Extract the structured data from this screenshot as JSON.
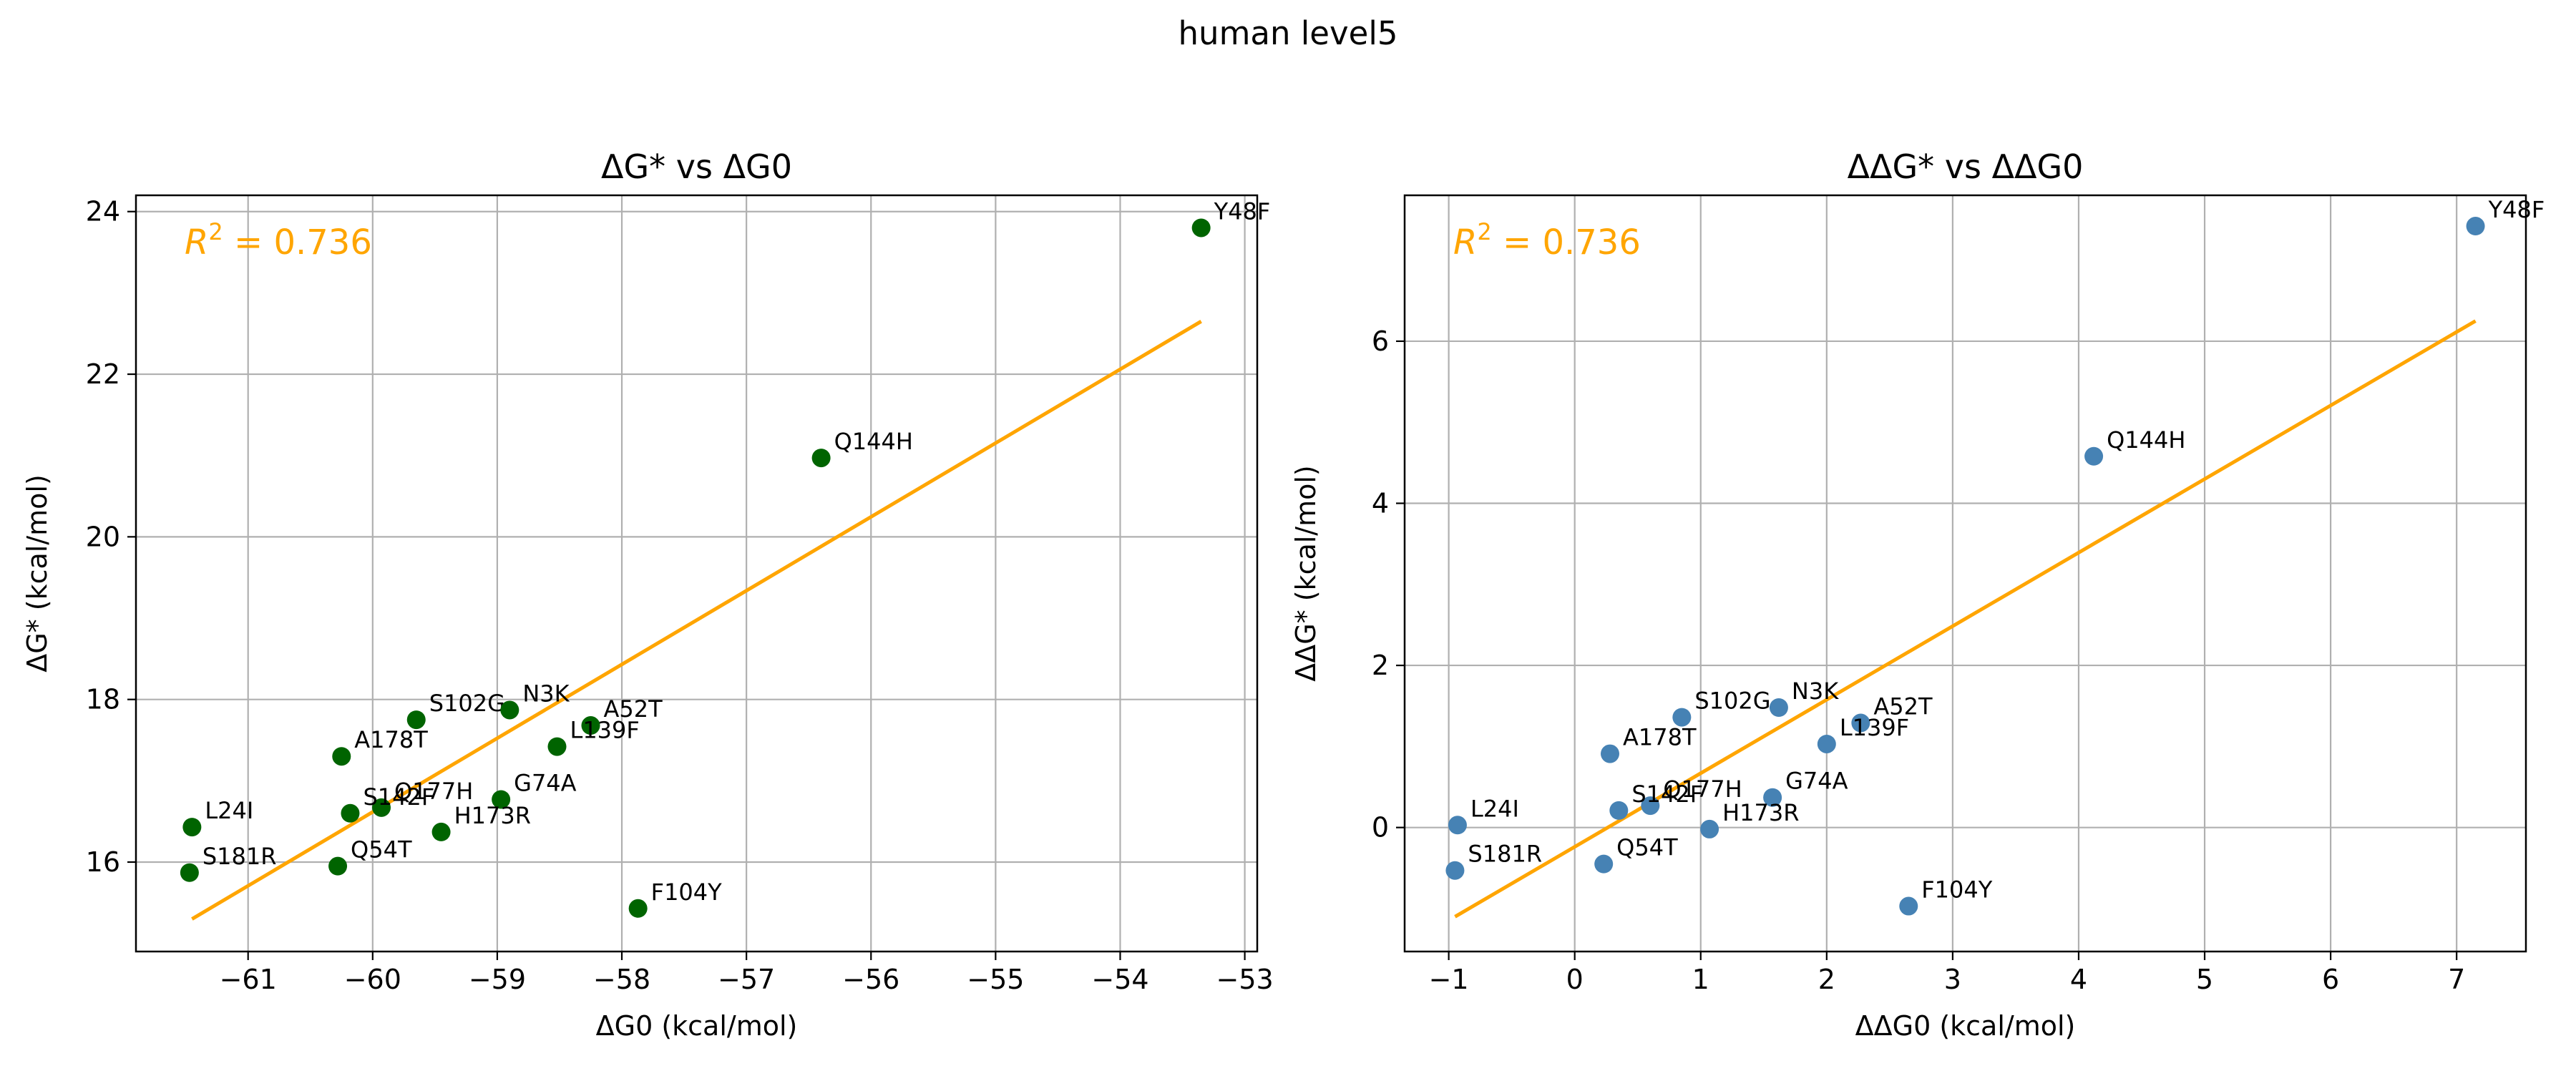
{
  "figure": {
    "title": "human level5"
  },
  "chart_data": [
    {
      "type": "scatter",
      "title": "ΔG* vs ΔG0",
      "xlabel": "ΔG0 (kcal/mol)",
      "ylabel": "ΔG* (kcal/mol)",
      "xlim": [
        -61.9,
        -52.9
      ],
      "ylim": [
        14.9,
        24.2
      ],
      "xticks": [
        -61,
        -60,
        -59,
        -58,
        -57,
        -56,
        -55,
        -54,
        -53
      ],
      "xtick_labels": [
        "−61",
        "−60",
        "−59",
        "−58",
        "−57",
        "−56",
        "−55",
        "−54",
        "−53"
      ],
      "yticks": [
        16,
        18,
        20,
        22,
        24
      ],
      "ytick_labels": [
        "16",
        "18",
        "20",
        "22",
        "24"
      ],
      "grid": true,
      "marker_color": "#006400",
      "fit_color": "#FFA500",
      "annotation": {
        "prefix": "R",
        "sup": "2",
        "suffix": " = 0.736"
      },
      "fit_line": {
        "x": [
          -61.45,
          -53.35
        ],
        "y": [
          15.3,
          22.65
        ]
      },
      "points": [
        {
          "label": "Y48F",
          "x": -53.35,
          "y": 23.8
        },
        {
          "label": "Q144H",
          "x": -56.4,
          "y": 20.97
        },
        {
          "label": "S102G",
          "x": -59.65,
          "y": 17.75
        },
        {
          "label": "N3K",
          "x": -58.9,
          "y": 17.87
        },
        {
          "label": "A52T",
          "x": -58.25,
          "y": 17.68
        },
        {
          "label": "L139F",
          "x": -58.52,
          "y": 17.42
        },
        {
          "label": "A178T",
          "x": -60.25,
          "y": 17.3
        },
        {
          "label": "G74A",
          "x": -58.97,
          "y": 16.77
        },
        {
          "label": "Q177H",
          "x": -59.93,
          "y": 16.67
        },
        {
          "label": "S142F",
          "x": -60.18,
          "y": 16.6
        },
        {
          "label": "H173R",
          "x": -59.45,
          "y": 16.37
        },
        {
          "label": "L24I",
          "x": -61.45,
          "y": 16.43
        },
        {
          "label": "Q54T",
          "x": -60.28,
          "y": 15.95
        },
        {
          "label": "S181R",
          "x": -61.47,
          "y": 15.87
        },
        {
          "label": "F104Y",
          "x": -57.87,
          "y": 15.43
        }
      ]
    },
    {
      "type": "scatter",
      "title": "ΔΔG* vs ΔΔG0",
      "xlabel": "ΔΔG0 (kcal/mol)",
      "ylabel": "ΔΔG* (kcal/mol)",
      "xlim": [
        -1.35,
        7.55
      ],
      "ylim": [
        -1.53,
        7.8
      ],
      "xticks": [
        -1,
        0,
        1,
        2,
        3,
        4,
        5,
        6,
        7
      ],
      "xtick_labels": [
        "−1",
        "0",
        "1",
        "2",
        "3",
        "4",
        "5",
        "6",
        "7"
      ],
      "yticks": [
        0,
        2,
        4,
        6
      ],
      "ytick_labels": [
        "0",
        "2",
        "4",
        "6"
      ],
      "grid": true,
      "marker_color": "#4682B4",
      "fit_color": "#FFA500",
      "annotation": {
        "prefix": "R",
        "sup": "2",
        "suffix": " = 0.736"
      },
      "fit_line": {
        "x": [
          -0.95,
          7.15
        ],
        "y": [
          -1.1,
          6.25
        ]
      },
      "points": [
        {
          "label": "Y48F",
          "x": 7.15,
          "y": 7.42
        },
        {
          "label": "Q144H",
          "x": 4.12,
          "y": 4.58
        },
        {
          "label": "S102G",
          "x": 0.85,
          "y": 1.36
        },
        {
          "label": "N3K",
          "x": 1.62,
          "y": 1.48
        },
        {
          "label": "A52T",
          "x": 2.27,
          "y": 1.29
        },
        {
          "label": "L139F",
          "x": 2.0,
          "y": 1.03
        },
        {
          "label": "A178T",
          "x": 0.28,
          "y": 0.91
        },
        {
          "label": "G74A",
          "x": 1.57,
          "y": 0.37
        },
        {
          "label": "Q177H",
          "x": 0.6,
          "y": 0.27
        },
        {
          "label": "S142F",
          "x": 0.35,
          "y": 0.21
        },
        {
          "label": "H173R",
          "x": 1.07,
          "y": -0.02
        },
        {
          "label": "L24I",
          "x": -0.93,
          "y": 0.03
        },
        {
          "label": "Q54T",
          "x": 0.23,
          "y": -0.45
        },
        {
          "label": "S181R",
          "x": -0.95,
          "y": -0.53
        },
        {
          "label": "F104Y",
          "x": 2.65,
          "y": -0.97
        }
      ]
    }
  ]
}
